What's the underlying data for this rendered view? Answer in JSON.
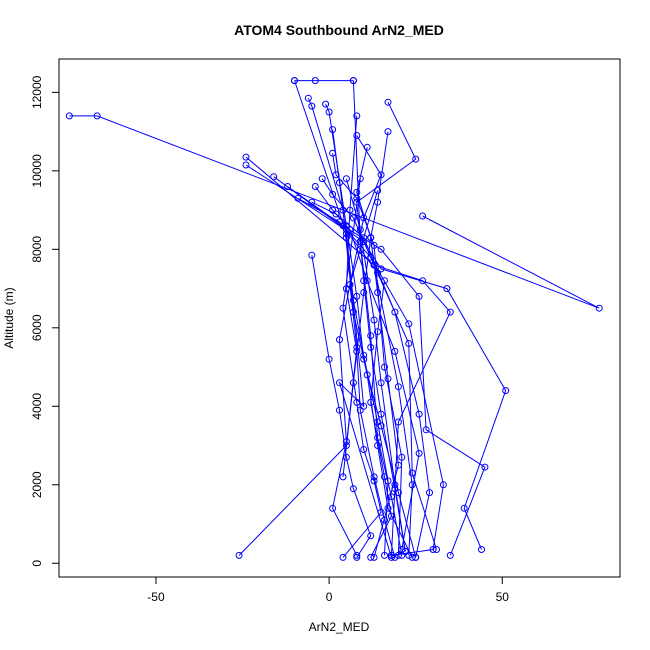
{
  "chart_data": {
    "type": "line",
    "title": "ATOM4 Southbound ArN2_MED",
    "xlabel": "ArN2_MED",
    "ylabel": "Altitude (m)",
    "xlim": [
      -78,
      84
    ],
    "ylim": [
      -350,
      12850
    ],
    "xticks": [
      -50,
      0,
      50
    ],
    "yticks": [
      0,
      2000,
      4000,
      6000,
      8000,
      10000,
      12000
    ],
    "grid": false,
    "legend": "none",
    "color": "#0000ff",
    "marker": "open-circle",
    "series": [
      {
        "x": [
          -75,
          -67,
          78,
          27
        ],
        "y": [
          11400,
          11400,
          6500,
          8850
        ]
      },
      {
        "x": [
          -10,
          -4,
          7
        ],
        "y": [
          12300,
          12300,
          12300
        ]
      },
      {
        "x": [
          -10,
          5,
          10,
          3,
          18
        ],
        "y": [
          12300,
          8400,
          4000,
          4600,
          150
        ]
      },
      {
        "x": [
          7,
          9,
          12,
          14,
          18,
          21
        ],
        "y": [
          12300,
          8200,
          5800,
          3200,
          1700,
          200
        ]
      },
      {
        "x": [
          -6,
          -5,
          4,
          7,
          11,
          14,
          17,
          24
        ],
        "y": [
          11850,
          11650,
          9000,
          6400,
          4800,
          3000,
          1400,
          150
        ]
      },
      {
        "x": [
          -1,
          0,
          5,
          8,
          10,
          15,
          20,
          25
        ],
        "y": [
          11700,
          11500,
          8600,
          6800,
          5200,
          3500,
          1800,
          150
        ]
      },
      {
        "x": [
          8,
          6,
          5,
          8,
          9,
          13,
          16,
          19
        ],
        "y": [
          11400,
          9000,
          7000,
          5400,
          3900,
          2200,
          1100,
          150
        ]
      },
      {
        "x": [
          17,
          25,
          8,
          10,
          12,
          15,
          19,
          22
        ],
        "y": [
          11750,
          10300,
          9200,
          7200,
          5500,
          3800,
          1900,
          300
        ]
      },
      {
        "x": [
          1,
          3,
          5,
          7,
          10,
          14,
          17,
          16
        ],
        "y": [
          11050,
          9700,
          8300,
          6700,
          5300,
          3600,
          2100,
          200
        ]
      },
      {
        "x": [
          -24,
          13,
          27,
          35,
          20,
          18
        ],
        "y": [
          10350,
          7600,
          7200,
          6400,
          3600,
          200
        ]
      },
      {
        "x": [
          -24,
          10,
          15,
          34,
          51,
          39,
          44
        ],
        "y": [
          10150,
          8200,
          7500,
          7000,
          4400,
          1400,
          350
        ]
      },
      {
        "x": [
          -16,
          5,
          12,
          23,
          33,
          30,
          18
        ],
        "y": [
          9850,
          8500,
          7800,
          6100,
          2000,
          350,
          200
        ]
      },
      {
        "x": [
          -12,
          4,
          15,
          26,
          28,
          45,
          35
        ],
        "y": [
          9600,
          8600,
          8000,
          6800,
          3400,
          2450,
          200
        ]
      },
      {
        "x": [
          -9,
          3,
          9,
          14,
          23,
          24,
          31
        ],
        "y": [
          9300,
          8700,
          8000,
          7400,
          5600,
          2300,
          350
        ]
      },
      {
        "x": [
          -5,
          2,
          10,
          19,
          26,
          29,
          25
        ],
        "y": [
          9200,
          8900,
          8300,
          6400,
          3800,
          1800,
          150
        ]
      },
      {
        "x": [
          -4,
          1,
          6,
          11,
          19,
          26,
          21
        ],
        "y": [
          9600,
          9000,
          8500,
          7200,
          5400,
          2800,
          350
        ]
      },
      {
        "x": [
          -2,
          1,
          7,
          13,
          20,
          24,
          23
        ],
        "y": [
          9800,
          9400,
          8800,
          7600,
          4500,
          2000,
          200
        ]
      },
      {
        "x": [
          1,
          2,
          8,
          13,
          16,
          21,
          20
        ],
        "y": [
          10450,
          9900,
          9300,
          8100,
          5000,
          2700,
          200
        ]
      },
      {
        "x": [
          11,
          8,
          12,
          14,
          17,
          20,
          13
        ],
        "y": [
          10600,
          9450,
          8300,
          6900,
          4700,
          2500,
          150
        ]
      },
      {
        "x": [
          -5,
          0,
          3,
          5,
          7,
          12,
          8
        ],
        "y": [
          7850,
          5200,
          3900,
          2700,
          1900,
          700,
          150
        ]
      },
      {
        "x": [
          9,
          4,
          8,
          10,
          13,
          15,
          4
        ],
        "y": [
          9800,
          6500,
          4100,
          2900,
          2100,
          1300,
          150
        ]
      },
      {
        "x": [
          14,
          6,
          3,
          5,
          1,
          8
        ],
        "y": [
          9500,
          7100,
          5700,
          3100,
          1400,
          200
        ]
      },
      {
        "x": [
          16,
          14,
          12,
          16,
          18,
          12
        ],
        "y": [
          7200,
          5900,
          4100,
          2200,
          1200,
          150
        ]
      },
      {
        "x": [
          -26,
          5,
          8,
          6,
          10,
          15,
          8
        ],
        "y": [
          200,
          3000,
          5500,
          7100,
          8800,
          9900,
          10900
        ]
      },
      {
        "x": [
          4,
          7,
          10,
          12,
          14,
          17
        ],
        "y": [
          2200,
          4600,
          6900,
          8300,
          9200,
          11000
        ]
      },
      {
        "x": [
          22,
          19,
          15,
          13,
          9,
          5
        ],
        "y": [
          300,
          2000,
          4600,
          6200,
          8500,
          9800
        ]
      }
    ]
  }
}
